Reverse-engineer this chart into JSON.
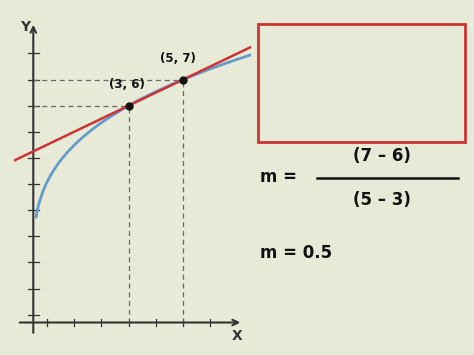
{
  "bg_color": "#e8ead8",
  "curve_color": "#6699cc",
  "secant_color": "#cc3333",
  "point1": [
    3,
    6
  ],
  "point2": [
    5,
    7
  ],
  "dashed_color": "#666666",
  "point_color": "#111111",
  "axis_color": "#333333",
  "formula_box_color": "#cc3333",
  "formula_text_color": "#111111",
  "curve_a": 4.5,
  "curve_b": 14,
  "curve_c": -6.5
}
